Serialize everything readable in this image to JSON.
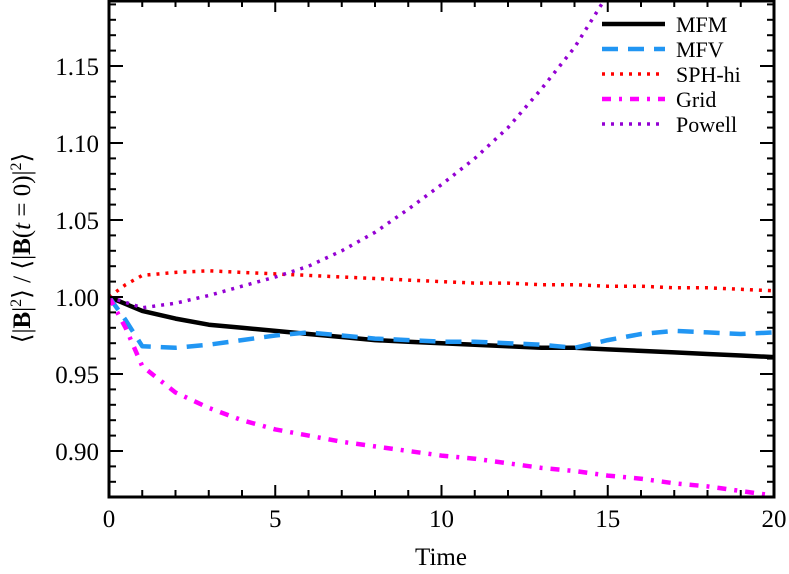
{
  "chart_data": {
    "type": "line",
    "title": "",
    "xlabel": "Time",
    "ylabel": "⟨|B|²⟩ / ⟨|B(t = 0)|²⟩",
    "xlim": [
      0,
      20
    ],
    "ylim": [
      0.87,
      1.193
    ],
    "xticks": [
      0,
      5,
      10,
      15,
      20
    ],
    "xtick_labels": [
      "0",
      "5",
      "10",
      "15",
      "20"
    ],
    "yticks": [
      0.9,
      0.95,
      1.0,
      1.05,
      1.1,
      1.15
    ],
    "ytick_labels": [
      "0.90",
      "0.95",
      "1.00",
      "1.05",
      "1.10",
      "1.15"
    ],
    "grid": false,
    "legend_position": "upper right",
    "series": [
      {
        "name": "MFM",
        "color": "#000000",
        "style": "solid",
        "x": [
          0,
          1,
          2,
          3,
          4,
          5,
          6,
          7,
          8,
          9,
          10,
          11,
          12,
          13,
          14,
          15,
          16,
          17,
          18,
          19,
          20
        ],
        "y": [
          1.0,
          0.991,
          0.986,
          0.982,
          0.98,
          0.978,
          0.976,
          0.974,
          0.972,
          0.971,
          0.97,
          0.969,
          0.968,
          0.967,
          0.967,
          0.966,
          0.965,
          0.964,
          0.963,
          0.962,
          0.961
        ]
      },
      {
        "name": "MFV",
        "color": "#2196f3",
        "style": "dashed",
        "x": [
          0,
          0.5,
          1,
          2,
          3,
          4,
          5,
          6,
          7,
          8,
          9,
          10,
          11,
          12,
          13,
          14,
          15,
          16,
          17,
          18,
          19,
          20
        ],
        "y": [
          1.0,
          0.985,
          0.968,
          0.967,
          0.969,
          0.972,
          0.975,
          0.977,
          0.975,
          0.973,
          0.972,
          0.971,
          0.971,
          0.97,
          0.969,
          0.967,
          0.972,
          0.976,
          0.978,
          0.977,
          0.976,
          0.977
        ]
      },
      {
        "name": "SPH-hi",
        "color": "#ff0000",
        "style": "dotted",
        "x": [
          0,
          0.5,
          1,
          2,
          3,
          4,
          5,
          6,
          7,
          8,
          9,
          10,
          11,
          12,
          13,
          14,
          15,
          16,
          17,
          18,
          19,
          20
        ],
        "y": [
          1.0,
          1.008,
          1.014,
          1.016,
          1.017,
          1.016,
          1.015,
          1.014,
          1.013,
          1.012,
          1.011,
          1.01,
          1.009,
          1.009,
          1.008,
          1.008,
          1.007,
          1.007,
          1.006,
          1.006,
          1.005,
          1.004
        ]
      },
      {
        "name": "Grid",
        "color": "#ff00ff",
        "style": "dashdot",
        "x": [
          0,
          0.5,
          1,
          2,
          3,
          4,
          5,
          6,
          7,
          8,
          9,
          10,
          11,
          12,
          13,
          14,
          15,
          16,
          17,
          18,
          19,
          20
        ],
        "y": [
          1.0,
          0.98,
          0.955,
          0.938,
          0.928,
          0.92,
          0.914,
          0.91,
          0.906,
          0.903,
          0.9,
          0.897,
          0.895,
          0.892,
          0.889,
          0.887,
          0.884,
          0.882,
          0.879,
          0.877,
          0.874,
          0.871
        ]
      },
      {
        "name": "Powell",
        "color": "#9400d3",
        "style": "dotted",
        "x": [
          0,
          1,
          2,
          3,
          4,
          5,
          6,
          7,
          8,
          9,
          10,
          11,
          12,
          13,
          14,
          14.9
        ],
        "y": [
          1.0,
          0.993,
          0.996,
          1.001,
          1.007,
          1.013,
          1.02,
          1.03,
          1.042,
          1.057,
          1.073,
          1.09,
          1.11,
          1.135,
          1.162,
          1.193
        ]
      }
    ]
  }
}
